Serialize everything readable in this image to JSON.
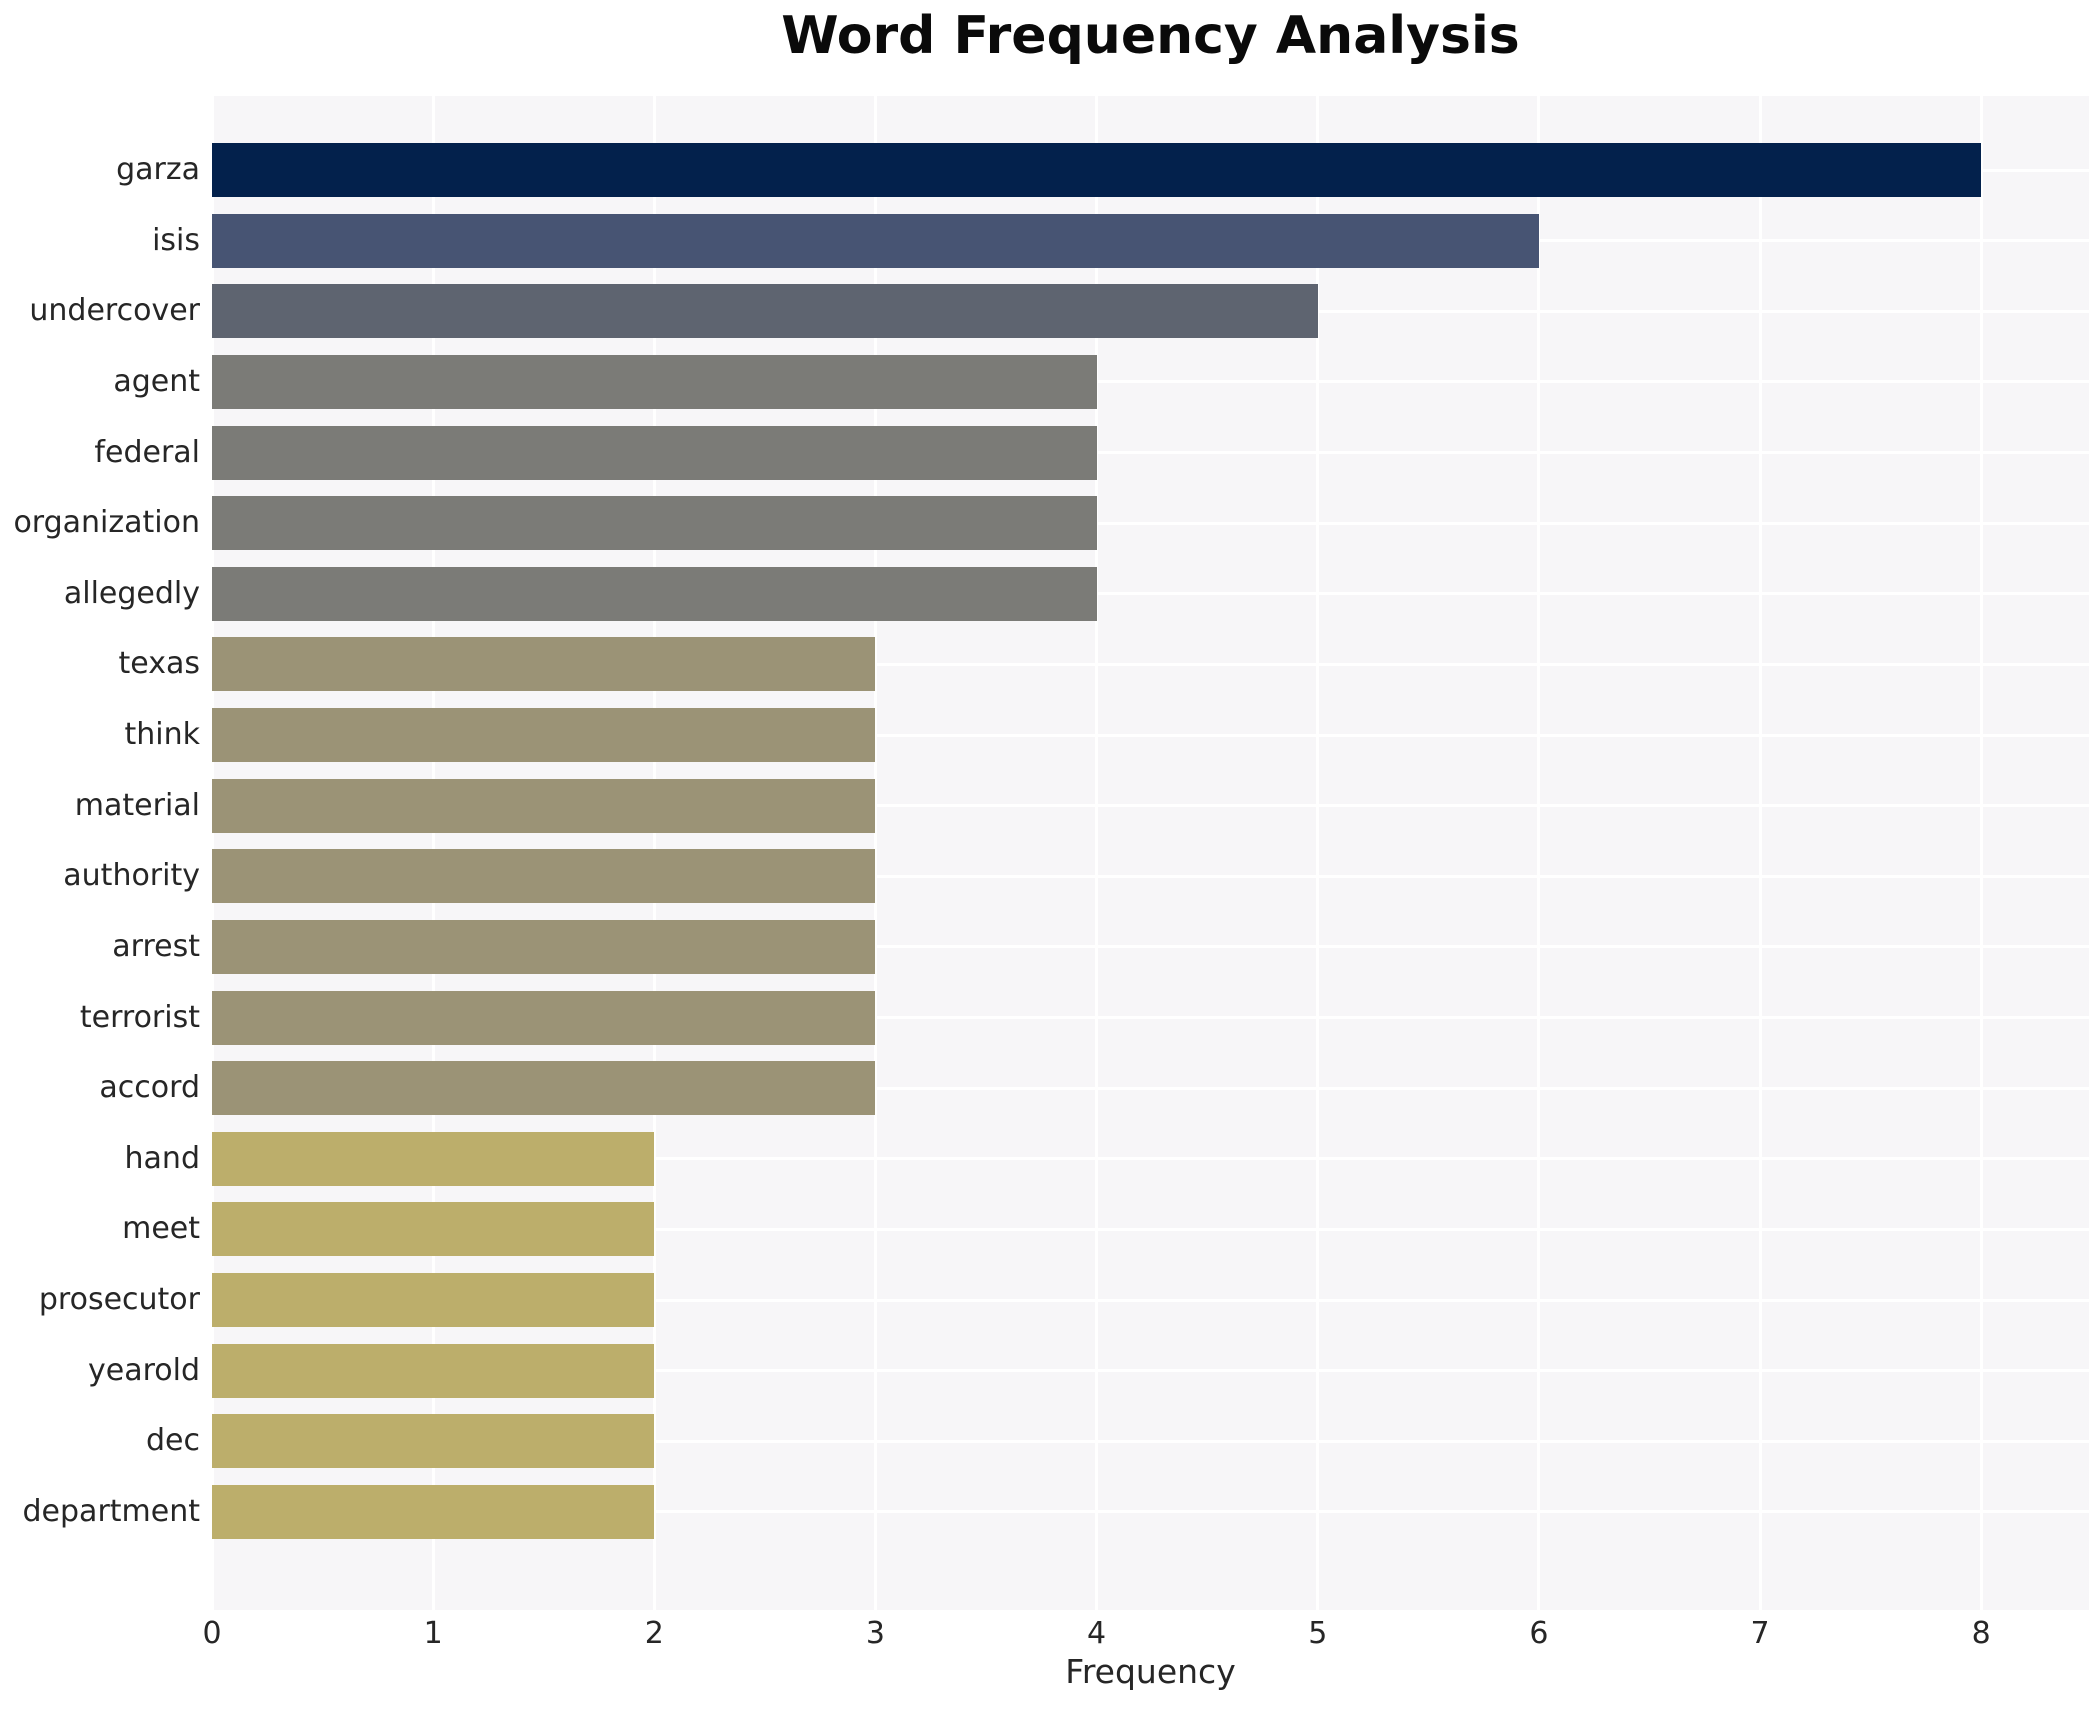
{
  "chart_data": {
    "type": "bar",
    "orientation": "horizontal",
    "title": "Word Frequency Analysis",
    "xlabel": "Frequency",
    "ylabel": "",
    "categories": [
      "garza",
      "isis",
      "undercover",
      "agent",
      "federal",
      "organization",
      "allegedly",
      "texas",
      "think",
      "material",
      "authority",
      "arrest",
      "terrorist",
      "accord",
      "hand",
      "meet",
      "prosecutor",
      "yearold",
      "dec",
      "department"
    ],
    "values": [
      8,
      6,
      5,
      4,
      4,
      4,
      4,
      3,
      3,
      3,
      3,
      3,
      3,
      3,
      2,
      2,
      2,
      2,
      2,
      2
    ],
    "bar_colors": [
      "#03214c",
      "#475473",
      "#5e6470",
      "#7b7b77",
      "#7b7b77",
      "#7b7b77",
      "#7b7b77",
      "#9b9376",
      "#9b9376",
      "#9b9376",
      "#9b9376",
      "#9b9376",
      "#9b9376",
      "#9b9376",
      "#bcae6b",
      "#bcae6b",
      "#bcae6b",
      "#bcae6b",
      "#bcae6b",
      "#bcae6b"
    ],
    "xticks": [
      "0",
      "1",
      "2",
      "3",
      "4",
      "5",
      "6",
      "7",
      "8"
    ],
    "xlim": [
      0,
      8.5
    ],
    "grid": true,
    "grid_color": "#ffffff",
    "panel_bg": "#f7f6f8",
    "text_color": "#262626",
    "legend": "none"
  }
}
